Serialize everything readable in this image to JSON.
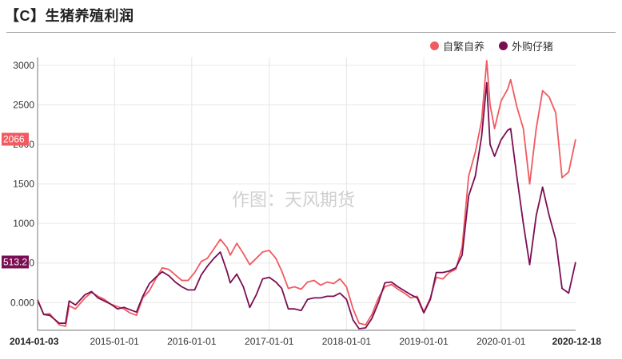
{
  "title": "【C】生猪养殖利润",
  "watermark": "作图：天风期货",
  "chart_data": {
    "type": "line",
    "ylim": [
      -350,
      3100
    ],
    "yticks": [
      0,
      500,
      1000,
      1500,
      2000,
      2500,
      3000
    ],
    "ytick_labels": [
      "0.000",
      "500.0",
      "1000",
      "1500",
      "2000",
      "2500",
      "3000"
    ],
    "xlim": [
      "2014-01-03",
      "2020-12-18"
    ],
    "xtick_labels": [
      "2014-01-03",
      "2015-01-01",
      "2016-01-01",
      "2017-01-01",
      "2018-01-01",
      "2019-01-01",
      "2020-01-01",
      "2020-12-18"
    ],
    "xticks": [
      "2014-01-03",
      "2015-01-01",
      "2016-01-01",
      "2017-01-01",
      "2018-01-01",
      "2019-01-01",
      "2020-01-01",
      "2020-12-18"
    ],
    "grid": true,
    "legend_position": "top-right",
    "series": [
      {
        "name": "自繁自养",
        "color": "#f05a60",
        "last_value_label": "2066",
        "points": [
          [
            "2014-01-03",
            40
          ],
          [
            "2014-02-01",
            -150
          ],
          [
            "2014-03-01",
            -140
          ],
          [
            "2014-04-15",
            -280
          ],
          [
            "2014-05-15",
            -300
          ],
          [
            "2014-06-01",
            -40
          ],
          [
            "2014-07-01",
            -80
          ],
          [
            "2014-08-15",
            60
          ],
          [
            "2014-09-15",
            130
          ],
          [
            "2014-10-15",
            80
          ],
          [
            "2014-11-15",
            40
          ],
          [
            "2014-12-15",
            -20
          ],
          [
            "2015-01-15",
            -50
          ],
          [
            "2015-02-15",
            -80
          ],
          [
            "2015-03-15",
            -130
          ],
          [
            "2015-04-15",
            -160
          ],
          [
            "2015-05-15",
            60
          ],
          [
            "2015-06-15",
            150
          ],
          [
            "2015-07-15",
            300
          ],
          [
            "2015-08-15",
            440
          ],
          [
            "2015-09-15",
            420
          ],
          [
            "2015-10-15",
            350
          ],
          [
            "2015-11-15",
            280
          ],
          [
            "2015-12-15",
            280
          ],
          [
            "2016-01-15",
            380
          ],
          [
            "2016-02-15",
            520
          ],
          [
            "2016-03-15",
            560
          ],
          [
            "2016-04-15",
            680
          ],
          [
            "2016-05-15",
            800
          ],
          [
            "2016-06-15",
            700
          ],
          [
            "2016-07-01",
            600
          ],
          [
            "2016-08-01",
            750
          ],
          [
            "2016-09-01",
            620
          ],
          [
            "2016-10-01",
            480
          ],
          [
            "2016-11-01",
            560
          ],
          [
            "2016-12-01",
            640
          ],
          [
            "2017-01-01",
            660
          ],
          [
            "2017-02-01",
            560
          ],
          [
            "2017-03-01",
            400
          ],
          [
            "2017-04-01",
            180
          ],
          [
            "2017-05-01",
            200
          ],
          [
            "2017-06-01",
            170
          ],
          [
            "2017-07-01",
            260
          ],
          [
            "2017-08-01",
            280
          ],
          [
            "2017-09-01",
            220
          ],
          [
            "2017-10-01",
            260
          ],
          [
            "2017-11-01",
            240
          ],
          [
            "2017-12-01",
            300
          ],
          [
            "2018-01-01",
            200
          ],
          [
            "2018-02-01",
            -80
          ],
          [
            "2018-03-01",
            -260
          ],
          [
            "2018-04-01",
            -280
          ],
          [
            "2018-05-01",
            -150
          ],
          [
            "2018-06-01",
            60
          ],
          [
            "2018-07-01",
            200
          ],
          [
            "2018-08-01",
            230
          ],
          [
            "2018-09-01",
            170
          ],
          [
            "2018-10-01",
            120
          ],
          [
            "2018-11-01",
            60
          ],
          [
            "2018-12-01",
            80
          ],
          [
            "2019-01-01",
            -120
          ],
          [
            "2019-02-01",
            60
          ],
          [
            "2019-03-01",
            320
          ],
          [
            "2019-04-01",
            300
          ],
          [
            "2019-05-01",
            380
          ],
          [
            "2019-06-01",
            420
          ],
          [
            "2019-07-01",
            700
          ],
          [
            "2019-08-01",
            1600
          ],
          [
            "2019-09-01",
            1900
          ],
          [
            "2019-10-01",
            2300
          ],
          [
            "2019-10-25",
            3060
          ],
          [
            "2019-11-10",
            2500
          ],
          [
            "2019-12-01",
            2200
          ],
          [
            "2020-01-01",
            2550
          ],
          [
            "2020-02-01",
            2700
          ],
          [
            "2020-02-15",
            2820
          ],
          [
            "2020-03-15",
            2480
          ],
          [
            "2020-04-15",
            2200
          ],
          [
            "2020-05-15",
            1500
          ],
          [
            "2020-06-15",
            2200
          ],
          [
            "2020-07-15",
            2680
          ],
          [
            "2020-08-15",
            2600
          ],
          [
            "2020-09-15",
            2400
          ],
          [
            "2020-10-15",
            1580
          ],
          [
            "2020-11-15",
            1650
          ],
          [
            "2020-12-18",
            2066
          ]
        ]
      },
      {
        "name": "外购仔猪",
        "color": "#7a0e52",
        "last_value_label": "513.2",
        "points": [
          [
            "2014-01-03",
            30
          ],
          [
            "2014-02-01",
            -150
          ],
          [
            "2014-03-01",
            -160
          ],
          [
            "2014-04-15",
            -260
          ],
          [
            "2014-05-15",
            -260
          ],
          [
            "2014-06-01",
            20
          ],
          [
            "2014-07-01",
            -30
          ],
          [
            "2014-08-15",
            100
          ],
          [
            "2014-09-15",
            140
          ],
          [
            "2014-10-15",
            60
          ],
          [
            "2014-11-15",
            20
          ],
          [
            "2014-12-15",
            -20
          ],
          [
            "2015-01-15",
            -80
          ],
          [
            "2015-02-15",
            -60
          ],
          [
            "2015-03-15",
            -90
          ],
          [
            "2015-04-15",
            -120
          ],
          [
            "2015-05-15",
            80
          ],
          [
            "2015-06-15",
            240
          ],
          [
            "2015-07-15",
            320
          ],
          [
            "2015-08-15",
            390
          ],
          [
            "2015-09-15",
            340
          ],
          [
            "2015-10-15",
            260
          ],
          [
            "2015-11-15",
            200
          ],
          [
            "2015-12-15",
            160
          ],
          [
            "2016-01-15",
            160
          ],
          [
            "2016-02-15",
            350
          ],
          [
            "2016-03-15",
            460
          ],
          [
            "2016-04-15",
            560
          ],
          [
            "2016-05-15",
            640
          ],
          [
            "2016-06-15",
            400
          ],
          [
            "2016-07-01",
            250
          ],
          [
            "2016-08-01",
            360
          ],
          [
            "2016-09-01",
            200
          ],
          [
            "2016-10-01",
            -60
          ],
          [
            "2016-11-01",
            100
          ],
          [
            "2016-12-01",
            300
          ],
          [
            "2017-01-01",
            320
          ],
          [
            "2017-02-01",
            260
          ],
          [
            "2017-03-01",
            180
          ],
          [
            "2017-04-01",
            -80
          ],
          [
            "2017-05-01",
            -80
          ],
          [
            "2017-06-01",
            -100
          ],
          [
            "2017-07-01",
            40
          ],
          [
            "2017-08-01",
            60
          ],
          [
            "2017-09-01",
            60
          ],
          [
            "2017-10-01",
            80
          ],
          [
            "2017-11-01",
            80
          ],
          [
            "2017-12-01",
            120
          ],
          [
            "2018-01-01",
            40
          ],
          [
            "2018-02-01",
            -220
          ],
          [
            "2018-03-01",
            -330
          ],
          [
            "2018-04-01",
            -320
          ],
          [
            "2018-05-01",
            -200
          ],
          [
            "2018-06-01",
            0
          ],
          [
            "2018-07-01",
            250
          ],
          [
            "2018-08-01",
            260
          ],
          [
            "2018-09-01",
            200
          ],
          [
            "2018-10-01",
            150
          ],
          [
            "2018-11-01",
            100
          ],
          [
            "2018-12-01",
            60
          ],
          [
            "2019-01-01",
            -130
          ],
          [
            "2019-02-01",
            40
          ],
          [
            "2019-03-01",
            380
          ],
          [
            "2019-04-01",
            380
          ],
          [
            "2019-05-01",
            400
          ],
          [
            "2019-06-01",
            440
          ],
          [
            "2019-07-01",
            600
          ],
          [
            "2019-08-01",
            1350
          ],
          [
            "2019-09-01",
            1600
          ],
          [
            "2019-10-01",
            2100
          ],
          [
            "2019-10-25",
            2780
          ],
          [
            "2019-11-10",
            2000
          ],
          [
            "2019-12-01",
            1850
          ],
          [
            "2020-01-01",
            2060
          ],
          [
            "2020-02-01",
            2180
          ],
          [
            "2020-02-15",
            2200
          ],
          [
            "2020-03-15",
            1600
          ],
          [
            "2020-04-15",
            1000
          ],
          [
            "2020-05-15",
            480
          ],
          [
            "2020-06-15",
            1100
          ],
          [
            "2020-07-15",
            1460
          ],
          [
            "2020-08-15",
            1100
          ],
          [
            "2020-09-15",
            800
          ],
          [
            "2020-10-15",
            180
          ],
          [
            "2020-11-15",
            120
          ],
          [
            "2020-12-18",
            513.2
          ]
        ]
      }
    ]
  }
}
